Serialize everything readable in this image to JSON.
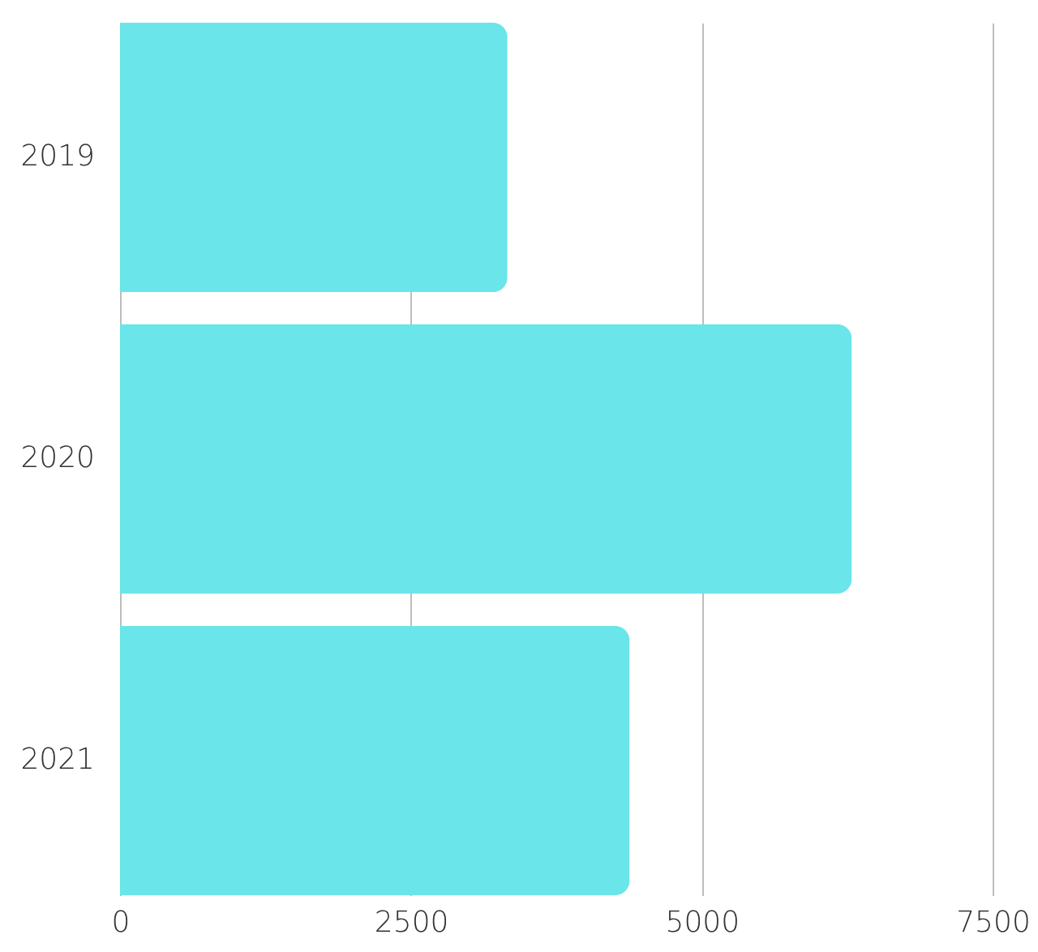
{
  "chart_data": {
    "type": "bar",
    "orientation": "horizontal",
    "categories": [
      "2019",
      "2020",
      "2021"
    ],
    "values": [
      3330,
      6290,
      4380
    ],
    "color": "#6ae5e9",
    "xlim": [
      0,
      7500
    ],
    "xticks": [
      0,
      2500,
      5000,
      7500
    ],
    "grid": "x"
  }
}
